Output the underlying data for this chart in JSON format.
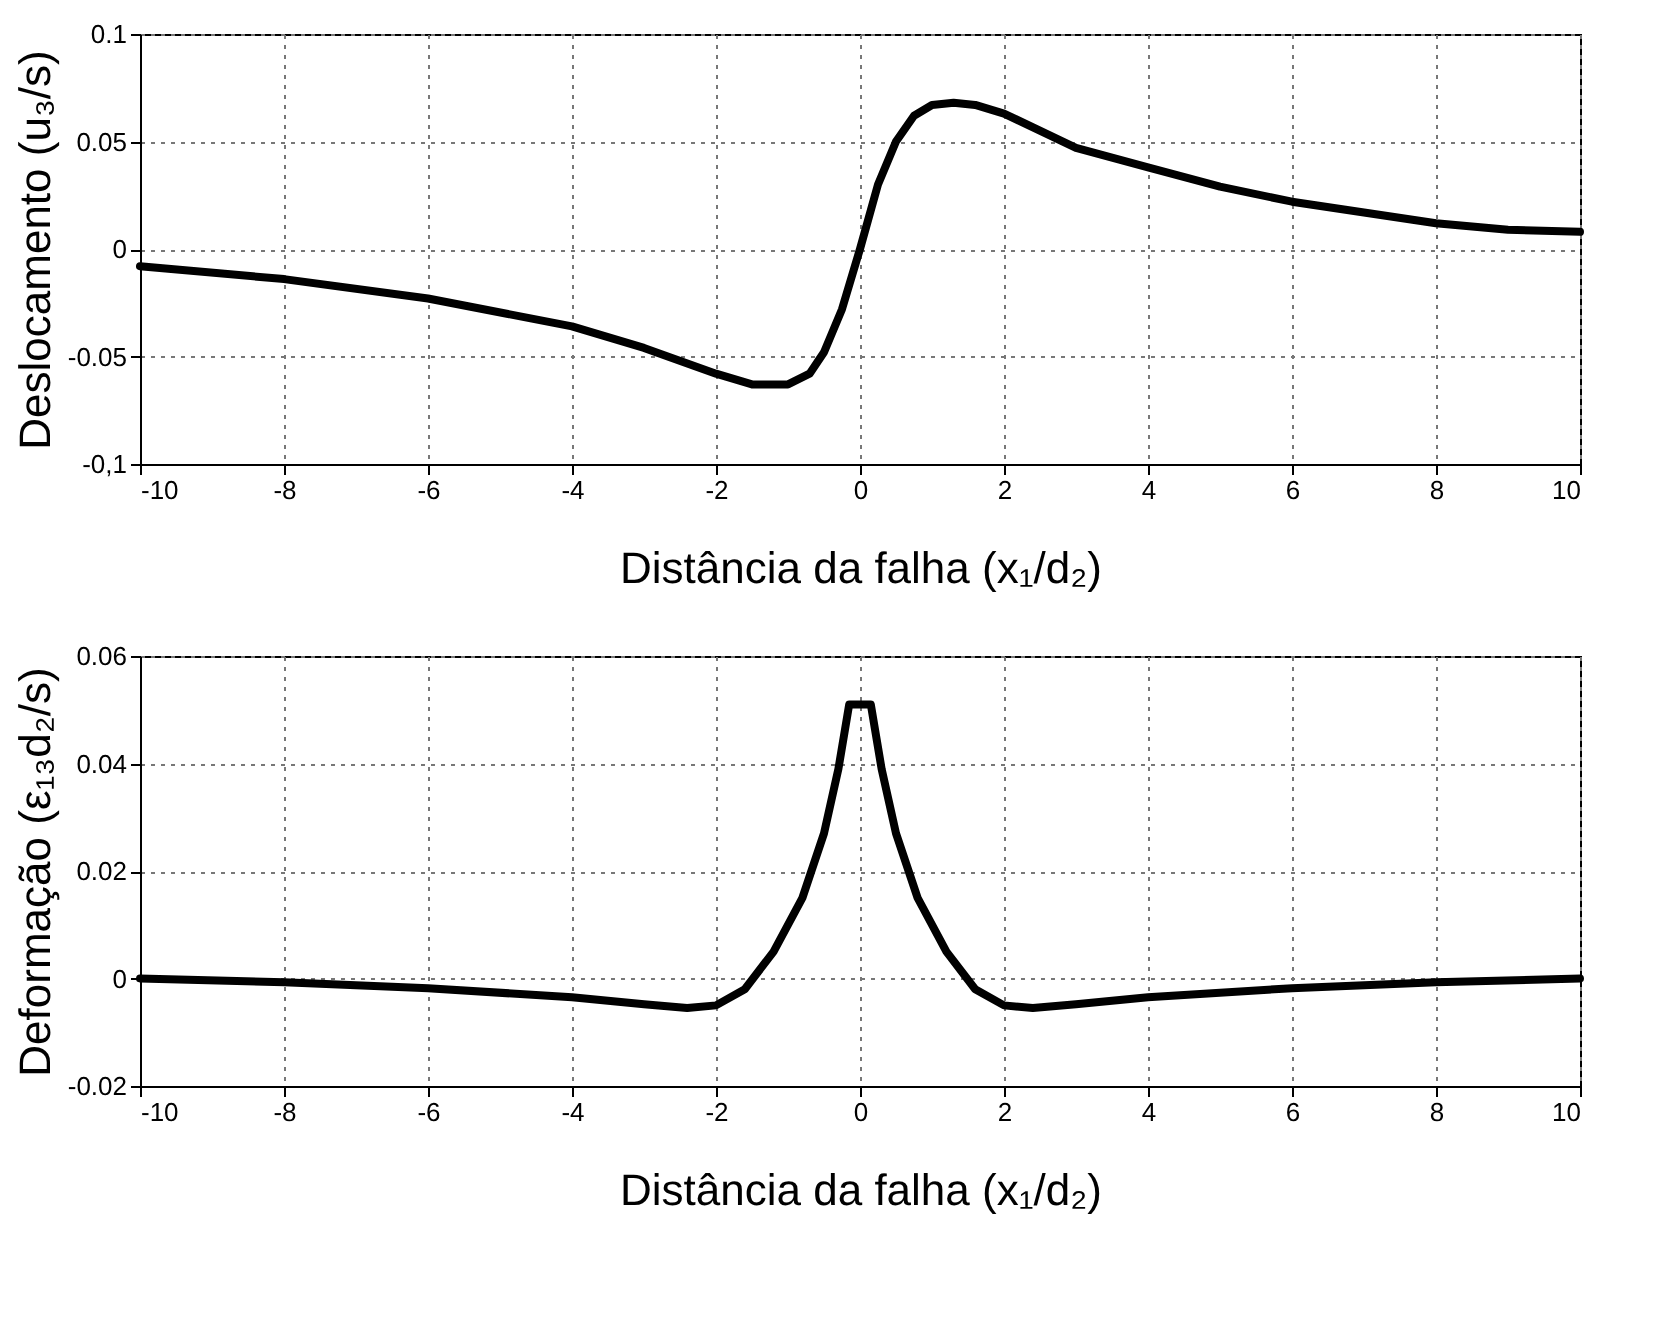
{
  "chart_data": [
    {
      "type": "line",
      "xlabel": "Distância da falha (x₁/d₂)",
      "ylabel": "Deslocamento (u₃/s)",
      "xlim": [
        -10,
        10
      ],
      "xticks": [
        -10,
        -8,
        -6,
        -4,
        -2,
        0,
        2,
        4,
        6,
        8,
        10
      ],
      "ylim": [
        -0.1,
        0.1
      ],
      "yticks": [
        {
          "value": -0.1,
          "label": "-0,1"
        },
        -0.05,
        0,
        0.05,
        0.1
      ],
      "grid": true,
      "marker": "none",
      "line_style": "solid",
      "series": [
        {
          "color": "#000000",
          "x": [
            -10,
            -8,
            -6,
            -4,
            -3,
            -2,
            -1.5,
            -1,
            -0.7,
            -0.5,
            -0.25,
            0,
            0.25,
            0.5,
            0.75,
            1,
            1.3,
            1.6,
            2,
            3,
            4,
            5,
            6,
            7,
            8,
            9,
            10
          ],
          "values": [
            -0.008,
            -0.014,
            -0.023,
            -0.036,
            -0.046,
            -0.058,
            -0.063,
            -0.063,
            -0.058,
            -0.048,
            -0.028,
            0,
            0.03,
            0.05,
            0.062,
            0.067,
            0.068,
            0.067,
            0.063,
            0.047,
            0.038,
            0.029,
            0.022,
            0.017,
            0.012,
            0.009,
            0.008
          ]
        }
      ]
    },
    {
      "type": "line",
      "xlabel": "Distância da falha (x₁/d₂)",
      "ylabel": "Deformação (ε₁₃d₂/s)",
      "xlim": [
        -10,
        10
      ],
      "xticks": [
        -10,
        -8,
        -6,
        -4,
        -2,
        0,
        2,
        4,
        6,
        8,
        10
      ],
      "ylim": [
        -0.02,
        0.06
      ],
      "yticks": [
        -0.02,
        0,
        0.02,
        0.04,
        0.06
      ],
      "grid": true,
      "marker": "none",
      "line_style": "solid",
      "series": [
        {
          "color": "#000000",
          "x": [
            -10,
            -8,
            -6,
            -4,
            -3,
            -2.4,
            -2,
            -1.6,
            -1.2,
            -0.8,
            -0.5,
            -0.3,
            -0.15,
            0.15,
            0.3,
            0.5,
            0.8,
            1.2,
            1.6,
            2,
            2.4,
            3,
            4,
            6,
            8,
            10
          ],
          "values": [
            0,
            -0.0007,
            -0.0018,
            -0.0035,
            -0.0048,
            -0.0055,
            -0.005,
            -0.002,
            0.005,
            0.015,
            0.027,
            0.039,
            0.051,
            0.051,
            0.039,
            0.027,
            0.015,
            0.005,
            -0.002,
            -0.005,
            -0.0055,
            -0.0048,
            -0.0035,
            -0.0018,
            -0.0007,
            0
          ]
        }
      ]
    }
  ]
}
